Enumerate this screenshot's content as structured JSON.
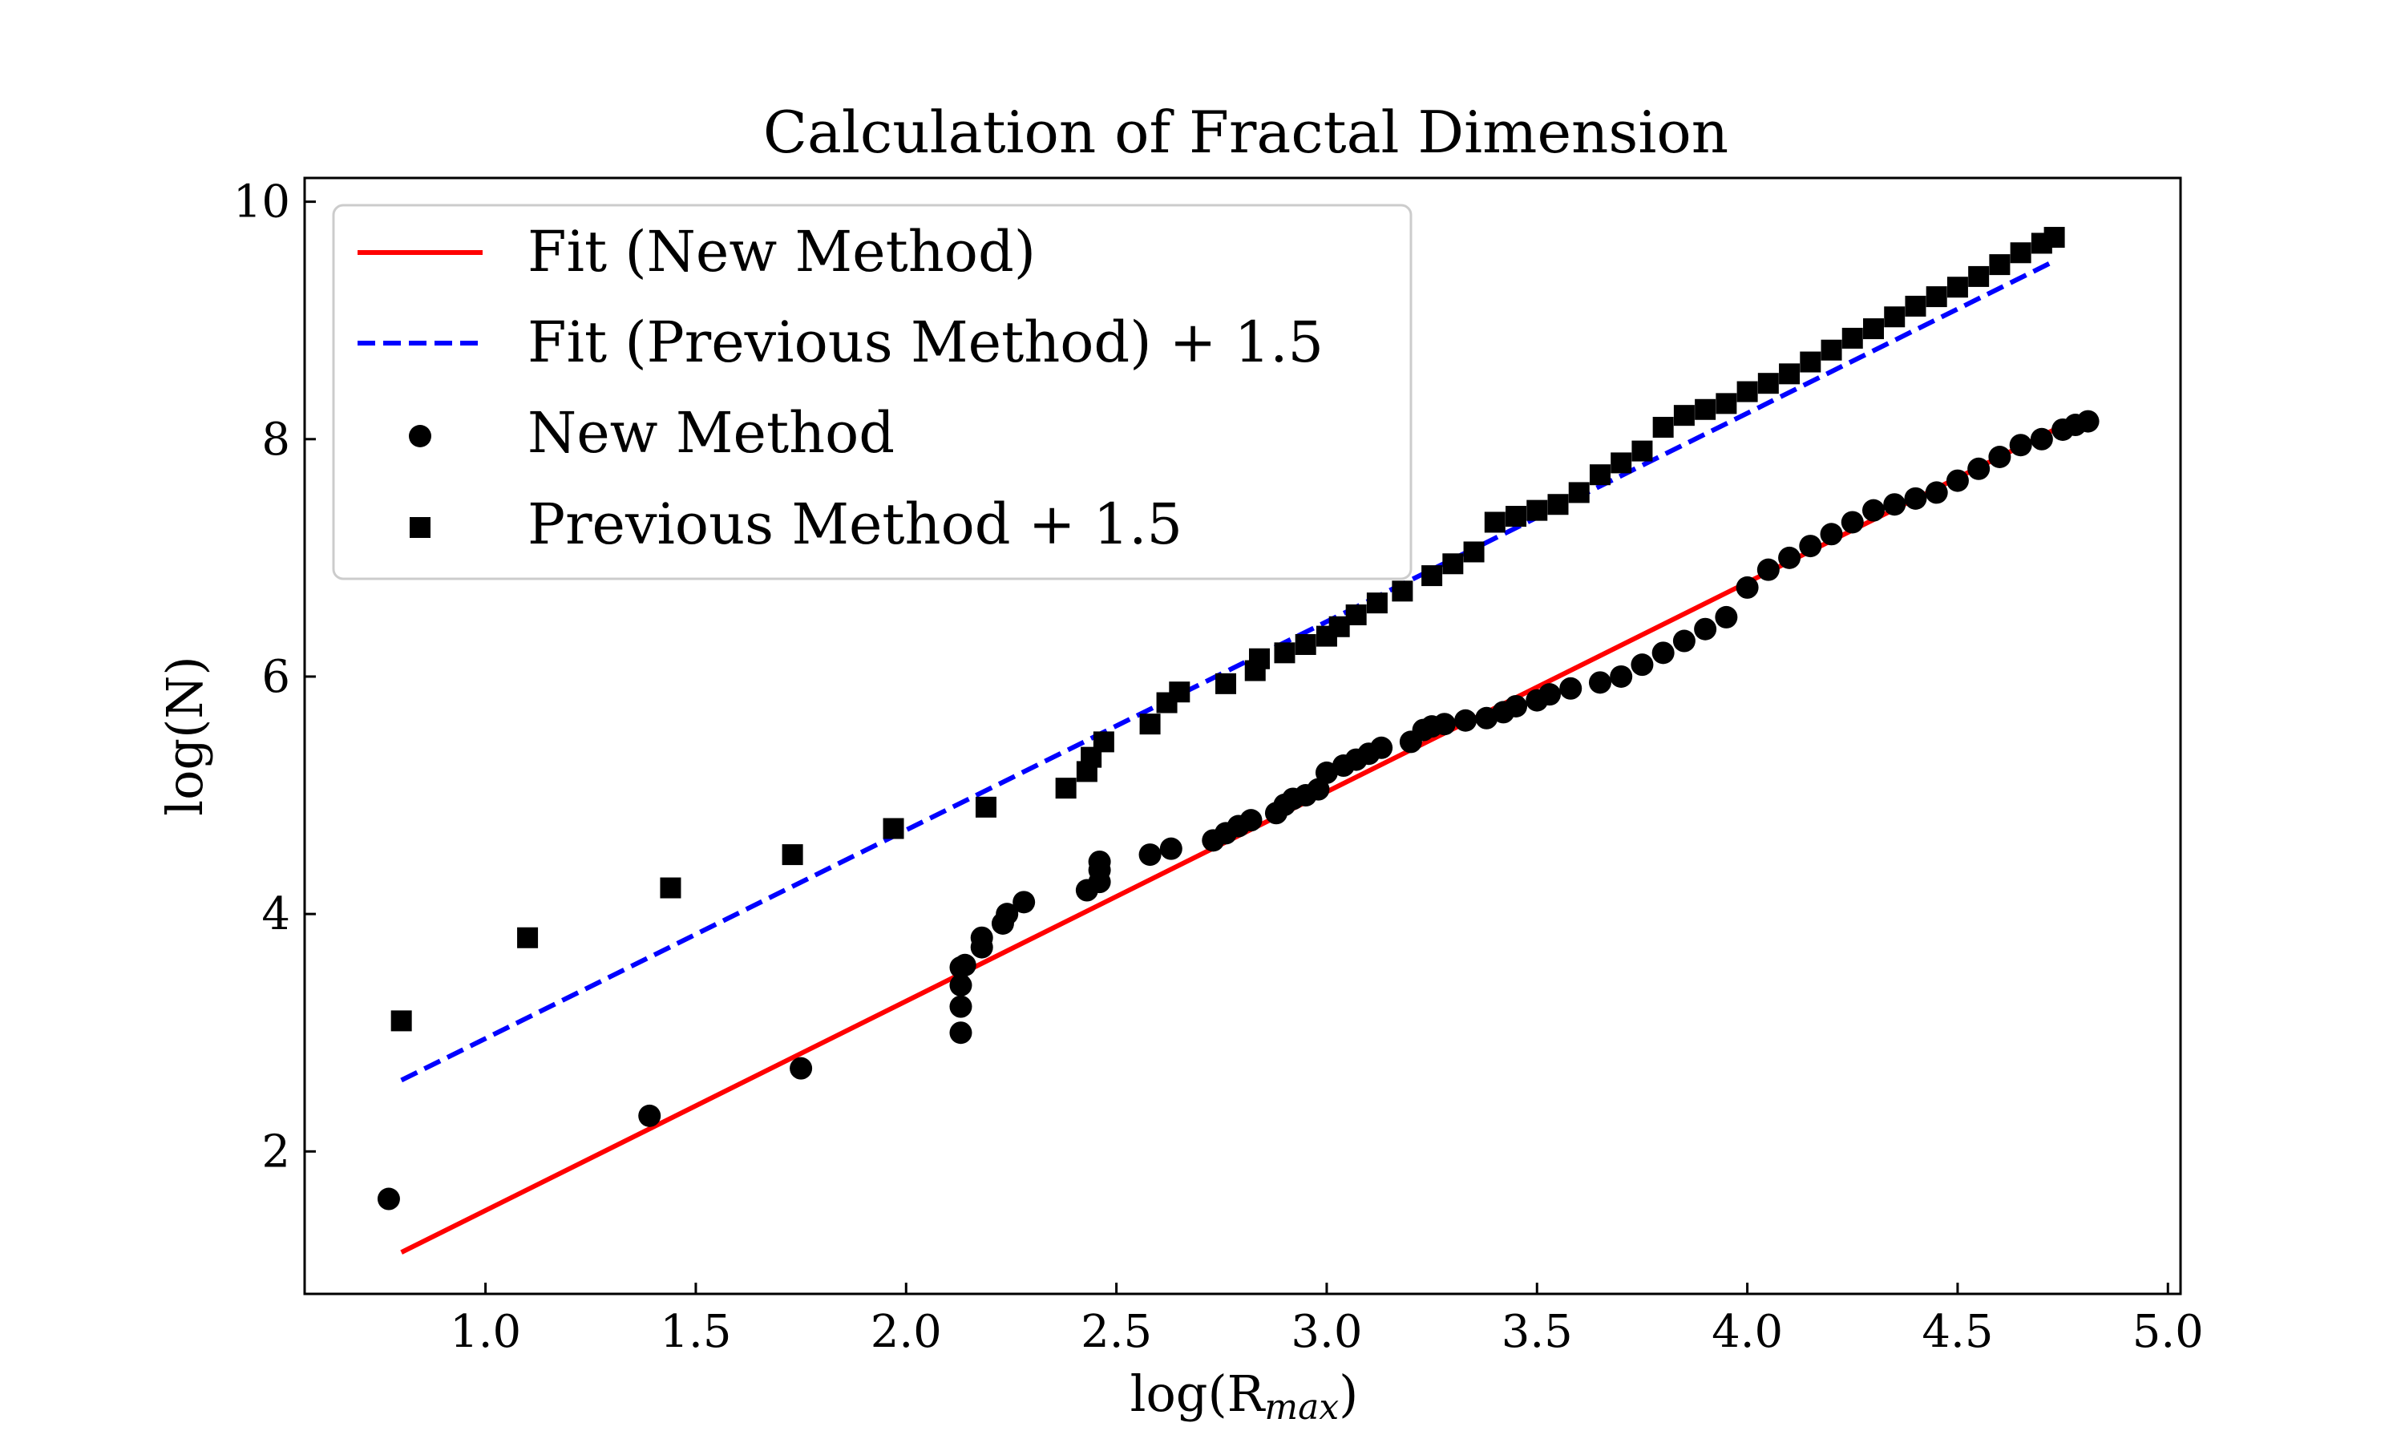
{
  "chart_data": {
    "type": "scatter",
    "title": "Calculation of Fractal Dimension",
    "xlabel": "log(R",
    "xlabel_sub": "max",
    "xlabel_close": ")",
    "ylabel": "log(N)",
    "xlim": [
      0.57,
      5.03
    ],
    "ylim": [
      0.8,
      10.2
    ],
    "xticks": [
      1.0,
      1.5,
      2.0,
      2.5,
      3.0,
      3.5,
      4.0,
      4.5,
      5.0
    ],
    "yticks": [
      2,
      4,
      6,
      8,
      10
    ],
    "grid": false,
    "legend_position": "top-left",
    "colors": {
      "fit_new": "#ff0000",
      "fit_previous": "#0000ff",
      "points": "#000000"
    },
    "series": [
      {
        "name": "Fit (New Method)",
        "kind": "line",
        "style": "solid",
        "x": [
          0.8,
          4.73
        ],
        "y": [
          1.15,
          8.08
        ]
      },
      {
        "name": "Fit (Previous Method) + 1.5",
        "kind": "line",
        "style": "dashed",
        "x": [
          0.8,
          4.73
        ],
        "y": [
          2.6,
          9.5
        ]
      },
      {
        "name": "New Method",
        "kind": "scatter",
        "marker": "circle",
        "x": [
          0.77,
          1.39,
          1.75,
          2.13,
          2.13,
          2.13,
          2.13,
          2.14,
          2.18,
          2.18,
          2.23,
          2.24,
          2.28,
          2.43,
          2.46,
          2.46,
          2.46,
          2.58,
          2.63,
          2.73,
          2.76,
          2.79,
          2.82,
          2.88,
          2.9,
          2.92,
          2.95,
          2.98,
          3.0,
          3.04,
          3.07,
          3.1,
          3.13,
          3.2,
          3.23,
          3.25,
          3.28,
          3.33,
          3.38,
          3.42,
          3.45,
          3.5,
          3.53,
          3.58,
          3.65,
          3.7,
          3.75,
          3.8,
          3.85,
          3.9,
          3.95,
          4.0,
          4.05,
          4.1,
          4.15,
          4.2,
          4.25,
          4.3,
          4.35,
          4.4,
          4.45,
          4.5,
          4.55,
          4.6,
          4.65,
          4.7,
          4.75,
          4.78,
          4.81
        ],
        "y": [
          1.6,
          2.3,
          2.7,
          3.0,
          3.22,
          3.4,
          3.55,
          3.57,
          3.72,
          3.8,
          3.92,
          4.0,
          4.1,
          4.2,
          4.27,
          4.37,
          4.44,
          4.5,
          4.55,
          4.62,
          4.68,
          4.74,
          4.79,
          4.85,
          4.92,
          4.97,
          5.0,
          5.05,
          5.19,
          5.25,
          5.3,
          5.35,
          5.4,
          5.45,
          5.55,
          5.58,
          5.6,
          5.63,
          5.65,
          5.7,
          5.75,
          5.8,
          5.85,
          5.9,
          5.95,
          6.0,
          6.1,
          6.2,
          6.3,
          6.4,
          6.5,
          6.75,
          6.9,
          7.0,
          7.1,
          7.2,
          7.3,
          7.4,
          7.45,
          7.5,
          7.55,
          7.65,
          7.75,
          7.85,
          7.95,
          8.0,
          8.08,
          8.12,
          8.15
        ]
      },
      {
        "name": "Previous Method + 1.5",
        "kind": "scatter",
        "marker": "square",
        "x": [
          0.8,
          1.1,
          1.44,
          1.73,
          1.97,
          2.19,
          2.38,
          2.43,
          2.44,
          2.47,
          2.58,
          2.62,
          2.65,
          2.76,
          2.83,
          2.84,
          2.9,
          2.95,
          3.0,
          3.03,
          3.07,
          3.12,
          3.18,
          3.25,
          3.3,
          3.35,
          3.4,
          3.45,
          3.5,
          3.55,
          3.6,
          3.65,
          3.7,
          3.75,
          3.8,
          3.85,
          3.9,
          3.95,
          4.0,
          4.05,
          4.1,
          4.15,
          4.2,
          4.25,
          4.3,
          4.35,
          4.4,
          4.45,
          4.5,
          4.55,
          4.6,
          4.65,
          4.7,
          4.73
        ],
        "y": [
          3.1,
          3.8,
          4.22,
          4.5,
          4.72,
          4.9,
          5.06,
          5.2,
          5.32,
          5.45,
          5.6,
          5.78,
          5.87,
          5.94,
          6.05,
          6.15,
          6.2,
          6.27,
          6.34,
          6.42,
          6.52,
          6.62,
          6.72,
          6.85,
          6.95,
          7.05,
          7.3,
          7.35,
          7.4,
          7.45,
          7.55,
          7.7,
          7.8,
          7.9,
          8.1,
          8.2,
          8.25,
          8.3,
          8.4,
          8.47,
          8.55,
          8.65,
          8.75,
          8.85,
          8.93,
          9.03,
          9.12,
          9.2,
          9.28,
          9.37,
          9.47,
          9.57,
          9.65,
          9.7
        ]
      }
    ]
  }
}
